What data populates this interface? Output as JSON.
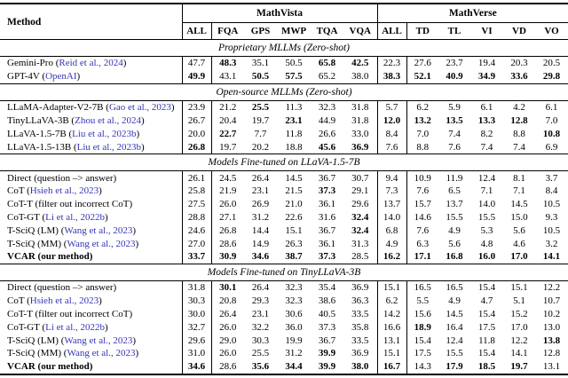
{
  "paper_table": {
    "method_header": "Method",
    "link_color": "#3434b8",
    "groups": [
      {
        "label": "MathVista",
        "columns": [
          "ALL",
          "FQA",
          "GPS",
          "MWP",
          "TQA",
          "VQA"
        ]
      },
      {
        "label": "MathVerse",
        "columns": [
          "ALL",
          "TD",
          "TL",
          "VI",
          "VD",
          "VO"
        ]
      }
    ],
    "sections": [
      {
        "title": "Proprietary MLLMs (Zero-shot)",
        "rows": [
          {
            "name": "Gemini-Pro",
            "cite": "Reid et al., 2024",
            "values": [
              "47.7",
              "48.3",
              "35.1",
              "50.5",
              "65.8",
              "42.5",
              "22.3",
              "27.6",
              "23.7",
              "19.4",
              "20.3",
              "20.5"
            ],
            "bold": [
              0,
              1,
              0,
              0,
              1,
              1,
              0,
              0,
              0,
              0,
              0,
              0
            ]
          },
          {
            "name": "GPT-4V",
            "cite": "OpenAI",
            "values": [
              "49.9",
              "43.1",
              "50.5",
              "57.5",
              "65.2",
              "38.0",
              "38.3",
              "52.1",
              "40.9",
              "34.9",
              "33.6",
              "29.8"
            ],
            "bold": [
              1,
              0,
              1,
              1,
              0,
              0,
              1,
              1,
              1,
              1,
              1,
              1
            ]
          }
        ]
      },
      {
        "title": "Open-source MLLMs (Zero-shot)",
        "rows": [
          {
            "name": "LLaMA-Adapter-V2-7B",
            "cite": "Gao et al., 2023",
            "values": [
              "23.9",
              "21.2",
              "25.5",
              "11.3",
              "32.3",
              "31.8",
              "5.7",
              "6.2",
              "5.9",
              "6.1",
              "4.2",
              "6.1"
            ],
            "bold": [
              0,
              0,
              1,
              0,
              0,
              0,
              0,
              0,
              0,
              0,
              0,
              0
            ]
          },
          {
            "name": "TinyLLaVA-3B",
            "cite": "Zhou et al., 2024",
            "values": [
              "26.7",
              "20.4",
              "19.7",
              "23.1",
              "44.9",
              "31.8",
              "12.0",
              "13.2",
              "13.5",
              "13.3",
              "12.8",
              "7.0"
            ],
            "bold": [
              0,
              0,
              0,
              1,
              0,
              0,
              1,
              1,
              1,
              1,
              1,
              0
            ]
          },
          {
            "name": "LLaVA-1.5-7B",
            "cite": "Liu et al., 2023b",
            "values": [
              "20.0",
              "22.7",
              "7.7",
              "11.8",
              "26.6",
              "33.0",
              "8.4",
              "7.0",
              "7.4",
              "8.2",
              "8.8",
              "10.8"
            ],
            "bold": [
              0,
              1,
              0,
              0,
              0,
              0,
              0,
              0,
              0,
              0,
              0,
              1
            ]
          },
          {
            "name": "LLaVA-1.5-13B",
            "cite": "Liu et al., 2023b",
            "values": [
              "26.8",
              "19.7",
              "20.2",
              "18.8",
              "45.6",
              "36.9",
              "7.6",
              "8.8",
              "7.6",
              "7.4",
              "7.4",
              "6.9"
            ],
            "bold": [
              1,
              0,
              0,
              0,
              1,
              1,
              0,
              0,
              0,
              0,
              0,
              0
            ]
          }
        ]
      },
      {
        "title": "Models Fine-tuned on LLaVA-1.5-7B",
        "rows": [
          {
            "name": "Direct",
            "note": "question –> answer",
            "values": [
              "26.1",
              "24.5",
              "26.4",
              "14.5",
              "36.7",
              "30.7",
              "9.4",
              "10.9",
              "11.9",
              "12.4",
              "8.1",
              "3.7"
            ],
            "bold": [
              0,
              0,
              0,
              0,
              0,
              0,
              0,
              0,
              0,
              0,
              0,
              0
            ]
          },
          {
            "name": "CoT",
            "cite": "Hsieh et al., 2023",
            "values": [
              "25.8",
              "21.9",
              "23.1",
              "21.5",
              "37.3",
              "29.1",
              "7.3",
              "7.6",
              "6.5",
              "7.1",
              "7.1",
              "8.4"
            ],
            "bold": [
              0,
              0,
              0,
              0,
              1,
              0,
              0,
              0,
              0,
              0,
              0,
              0
            ]
          },
          {
            "name": "CoT-T",
            "note": "filter out incorrect CoT",
            "values": [
              "27.5",
              "26.0",
              "26.9",
              "21.0",
              "36.1",
              "29.6",
              "13.7",
              "15.7",
              "13.7",
              "14.0",
              "14.5",
              "10.5"
            ],
            "bold": [
              0,
              0,
              0,
              0,
              0,
              0,
              0,
              0,
              0,
              0,
              0,
              0
            ]
          },
          {
            "name": "CoT-GT",
            "cite": "Li et al., 2022b",
            "values": [
              "28.8",
              "27.1",
              "31.2",
              "22.6",
              "31.6",
              "32.4",
              "14.0",
              "14.6",
              "15.5",
              "15.5",
              "15.0",
              "9.3"
            ],
            "bold": [
              0,
              0,
              0,
              0,
              0,
              1,
              0,
              0,
              0,
              0,
              0,
              0
            ]
          },
          {
            "name": "T-SciQ (LM)",
            "cite": "Wang et al., 2023",
            "values": [
              "24.6",
              "26.8",
              "14.4",
              "15.1",
              "36.7",
              "32.4",
              "6.8",
              "7.6",
              "4.9",
              "5.3",
              "5.6",
              "10.5"
            ],
            "bold": [
              0,
              0,
              0,
              0,
              0,
              1,
              0,
              0,
              0,
              0,
              0,
              0
            ]
          },
          {
            "name": "T-SciQ (MM)",
            "cite": "Wang et al., 2023",
            "values": [
              "27.0",
              "28.6",
              "14.9",
              "26.3",
              "36.1",
              "31.3",
              "4.9",
              "6.3",
              "5.6",
              "4.8",
              "4.6",
              "3.2"
            ],
            "bold": [
              0,
              0,
              0,
              0,
              0,
              0,
              0,
              0,
              0,
              0,
              0,
              0
            ]
          },
          {
            "name": "VCAR",
            "note": "our method",
            "bold_name": true,
            "values": [
              "33.7",
              "30.9",
              "34.6",
              "38.7",
              "37.3",
              "28.5",
              "16.2",
              "17.1",
              "16.8",
              "16.0",
              "17.0",
              "14.1"
            ],
            "bold": [
              1,
              1,
              1,
              1,
              1,
              0,
              1,
              1,
              1,
              1,
              1,
              1
            ]
          }
        ]
      },
      {
        "title": "Models Fine-tuned on TinyLLaVA-3B",
        "rows": [
          {
            "name": "Direct",
            "note": "question –> answer",
            "values": [
              "31.8",
              "30.1",
              "26.4",
              "32.3",
              "35.4",
              "36.9",
              "15.1",
              "16.5",
              "16.5",
              "15.4",
              "15.1",
              "12.2"
            ],
            "bold": [
              0,
              1,
              0,
              0,
              0,
              0,
              0,
              0,
              0,
              0,
              0,
              0
            ]
          },
          {
            "name": "CoT",
            "cite": "Hsieh et al., 2023",
            "values": [
              "30.3",
              "20.8",
              "29.3",
              "32.3",
              "38.6",
              "36.3",
              "6.2",
              "5.5",
              "4.9",
              "4.7",
              "5.1",
              "10.7"
            ],
            "bold": [
              0,
              0,
              0,
              0,
              0,
              0,
              0,
              0,
              0,
              0,
              0,
              0
            ]
          },
          {
            "name": "CoT-T",
            "note": "filter out incorrect CoT",
            "values": [
              "30.0",
              "26.4",
              "23.1",
              "30.6",
              "40.5",
              "33.5",
              "14.2",
              "15.6",
              "14.5",
              "15.4",
              "15.2",
              "10.2"
            ],
            "bold": [
              0,
              0,
              0,
              0,
              0,
              0,
              0,
              0,
              0,
              0,
              0,
              0
            ]
          },
          {
            "name": "CoT-GT",
            "cite": "Li et al., 2022b",
            "values": [
              "32.7",
              "26.0",
              "32.2",
              "36.0",
              "37.3",
              "35.8",
              "16.6",
              "18.9",
              "16.4",
              "17.5",
              "17.0",
              "13.0"
            ],
            "bold": [
              0,
              0,
              0,
              0,
              0,
              0,
              0,
              1,
              0,
              0,
              0,
              0
            ]
          },
          {
            "name": "T-SciQ (LM)",
            "cite": "Wang et al., 2023",
            "values": [
              "29.6",
              "29.0",
              "30.3",
              "19.9",
              "36.7",
              "33.5",
              "13.1",
              "15.4",
              "12.4",
              "11.8",
              "12.2",
              "13.8"
            ],
            "bold": [
              0,
              0,
              0,
              0,
              0,
              0,
              0,
              0,
              0,
              0,
              0,
              1
            ]
          },
          {
            "name": "T-SciQ (MM)",
            "cite": "Wang et al., 2023",
            "values": [
              "31.0",
              "26.0",
              "25.5",
              "31.2",
              "39.9",
              "36.9",
              "15.1",
              "17.5",
              "15.5",
              "15.4",
              "14.1",
              "12.8"
            ],
            "bold": [
              0,
              0,
              0,
              0,
              1,
              0,
              0,
              0,
              0,
              0,
              0,
              0
            ]
          },
          {
            "name": "VCAR",
            "note": "our method",
            "bold_name": true,
            "values": [
              "34.6",
              "28.6",
              "35.6",
              "34.4",
              "39.9",
              "38.0",
              "16.7",
              "14.3",
              "17.9",
              "18.5",
              "19.7",
              "13.1"
            ],
            "bold": [
              1,
              0,
              1,
              1,
              1,
              1,
              1,
              0,
              1,
              1,
              1,
              0
            ]
          }
        ]
      }
    ]
  }
}
